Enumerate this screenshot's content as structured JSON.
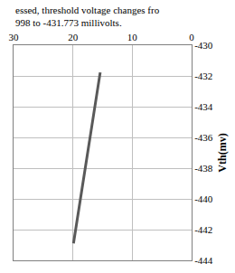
{
  "chart_data": {
    "type": "line",
    "annotations": [
      "essed, threshold voltage changes fro",
      "998 to -431.773 millivolts."
    ],
    "y_label": "Vth(mv)",
    "x": [
      19.9,
      15.4
    ],
    "values": [
      -442.9,
      -431.773
    ],
    "color": "#595959",
    "xlim": [
      30,
      0
    ],
    "xticks": [
      30,
      20,
      10,
      0
    ],
    "ylim": [
      -444,
      -430
    ],
    "yticks": [
      -444,
      -442,
      -440,
      -438,
      -436,
      -434,
      -432,
      -430
    ],
    "grid": true
  }
}
